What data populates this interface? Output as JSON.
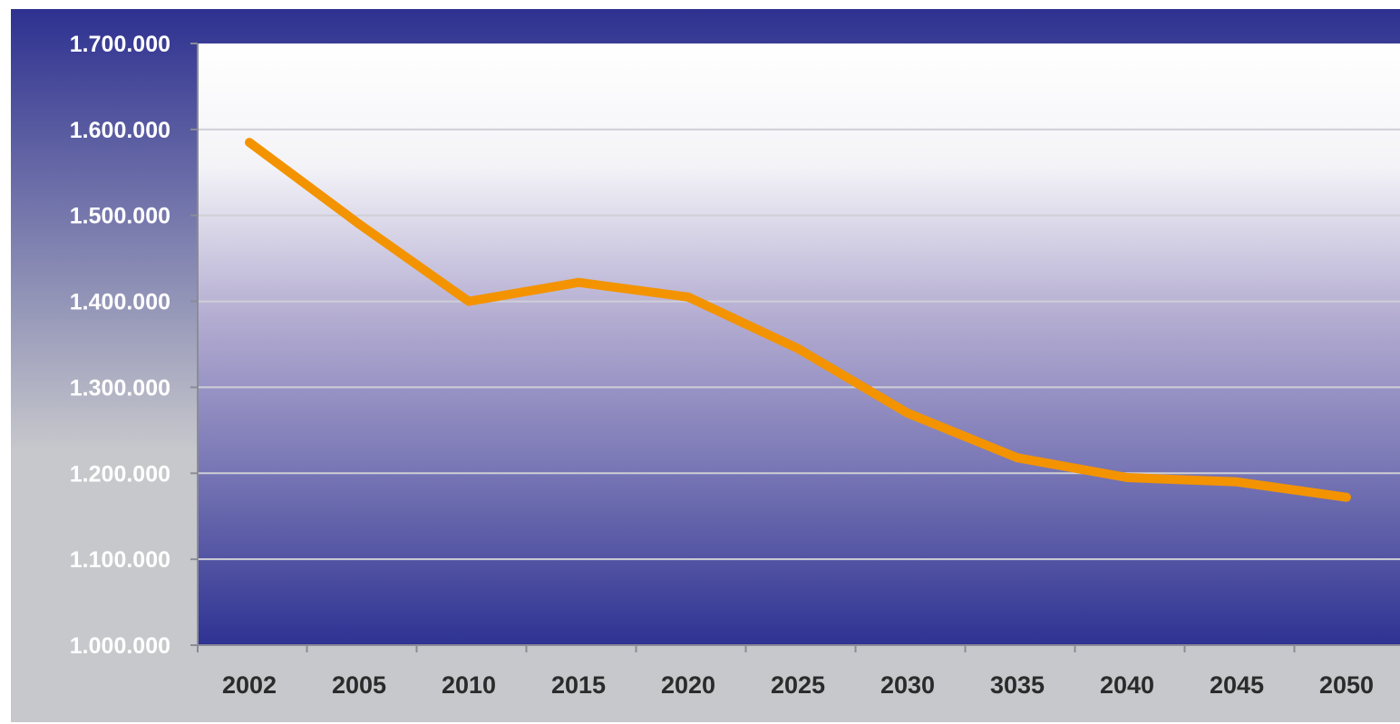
{
  "chart_data": {
    "type": "line",
    "title": "",
    "xlabel": "",
    "ylabel": "",
    "categories": [
      "2002",
      "2005",
      "2010",
      "2015",
      "2020",
      "2025",
      "2030",
      "3035",
      "2040",
      "2045",
      "2050"
    ],
    "series": [
      {
        "values": [
          1585000,
          1490000,
          1400000,
          1422000,
          1405000,
          1345000,
          1270000,
          1218000,
          1195000,
          1190000,
          1172000
        ]
      }
    ],
    "yticks": [
      "1.000.000",
      "1.100.000",
      "1.200.000",
      "1.300.000",
      "1.400.000",
      "1.500.000",
      "1.600.000",
      "1.700.000"
    ],
    "ylim": [
      1000000,
      1700000
    ],
    "grid": true,
    "legend": "none",
    "colors": {
      "line": "#f39300",
      "plot_top": "#ffffff",
      "plot_mid": "#b5aed2",
      "plot_bottom": "#2e3292",
      "frame_dark": "#2e3190",
      "frame_light": "#c7c8cc",
      "gridline": "#cfcfd6"
    }
  }
}
